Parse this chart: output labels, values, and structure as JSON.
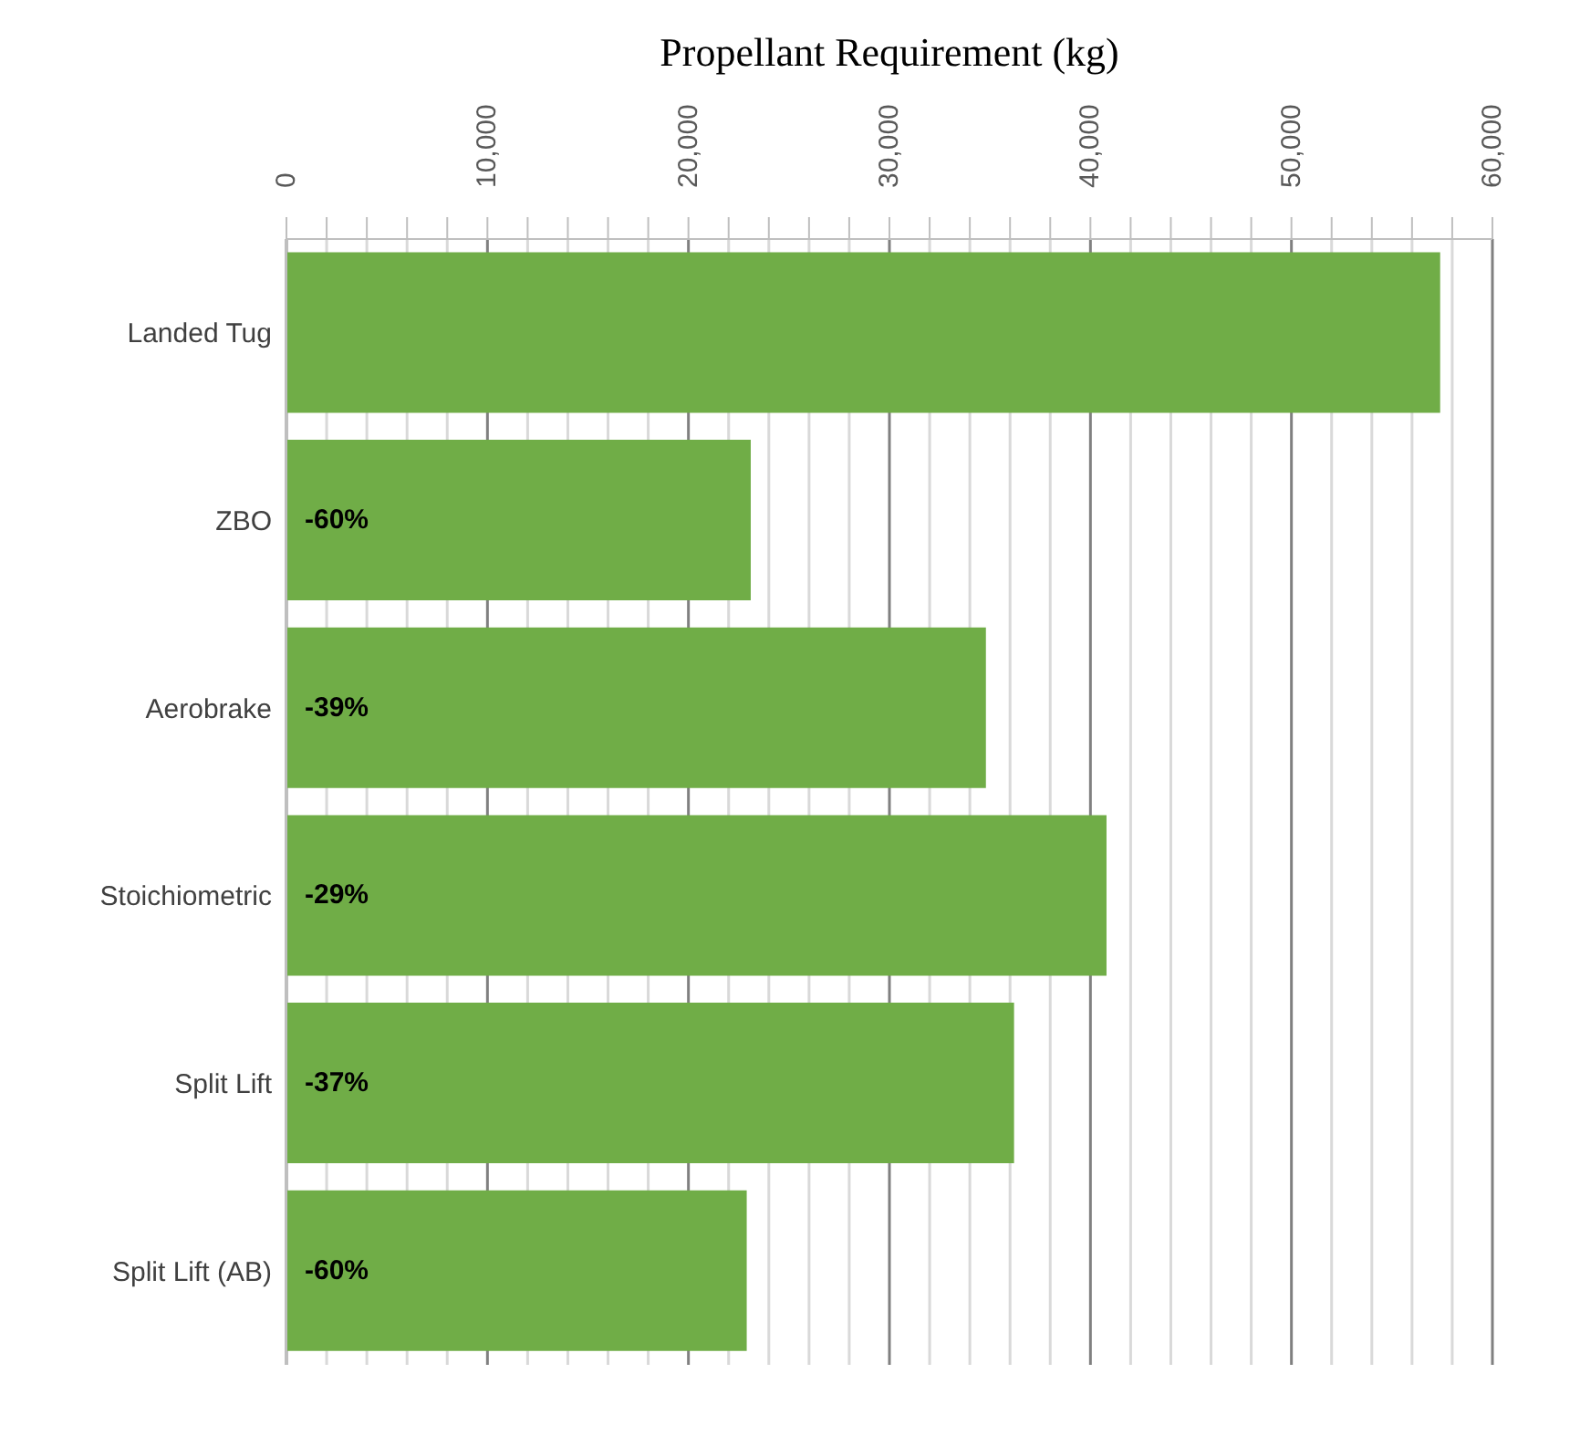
{
  "chart_data": {
    "type": "bar",
    "orientation": "horizontal",
    "title": "Propellant Requirement (kg)",
    "categories": [
      "Landed Tug",
      "ZBO",
      "Aerobrake",
      "Stoichiometric",
      "Split Lift",
      "Split Lift (AB)"
    ],
    "values": [
      57400,
      23100,
      34800,
      40800,
      36200,
      22900
    ],
    "annotations": [
      {
        "text": "-60%",
        "y": "ZBO"
      },
      {
        "text": "-39%",
        "y": "Aerobrake"
      },
      {
        "text": "-29%",
        "y": "Stoichiometric"
      },
      {
        "text": "-37%",
        "y": "Split Lift"
      },
      {
        "text": "-60%",
        "y": "Split Lift (AB)"
      }
    ],
    "color": "#70ad47",
    "xlim": [
      0,
      60000
    ],
    "xticks": [
      {
        "value": 0,
        "label": "0"
      },
      {
        "value": 2000,
        "label": null
      },
      {
        "value": 4000,
        "label": null
      },
      {
        "value": 6000,
        "label": null
      },
      {
        "value": 8000,
        "label": null
      },
      {
        "value": 10000,
        "label": "10,000"
      },
      {
        "value": 12000,
        "label": null
      },
      {
        "value": 14000,
        "label": null
      },
      {
        "value": 16000,
        "label": null
      },
      {
        "value": 18000,
        "label": null
      },
      {
        "value": 20000,
        "label": "20,000"
      },
      {
        "value": 22000,
        "label": null
      },
      {
        "value": 24000,
        "label": null
      },
      {
        "value": 26000,
        "label": null
      },
      {
        "value": 28000,
        "label": null
      },
      {
        "value": 30000,
        "label": "30,000"
      },
      {
        "value": 32000,
        "label": null
      },
      {
        "value": 34000,
        "label": null
      },
      {
        "value": 36000,
        "label": null
      },
      {
        "value": 38000,
        "label": null
      },
      {
        "value": 40000,
        "label": "40,000"
      },
      {
        "value": 42000,
        "label": null
      },
      {
        "value": 44000,
        "label": null
      },
      {
        "value": 46000,
        "label": null
      },
      {
        "value": 48000,
        "label": null
      },
      {
        "value": 50000,
        "label": "50,000"
      },
      {
        "value": 52000,
        "label": null
      },
      {
        "value": 54000,
        "label": null
      },
      {
        "value": 56000,
        "label": null
      },
      {
        "value": 58000,
        "label": null
      },
      {
        "value": 60000,
        "label": "60,000"
      }
    ],
    "grid": true
  }
}
